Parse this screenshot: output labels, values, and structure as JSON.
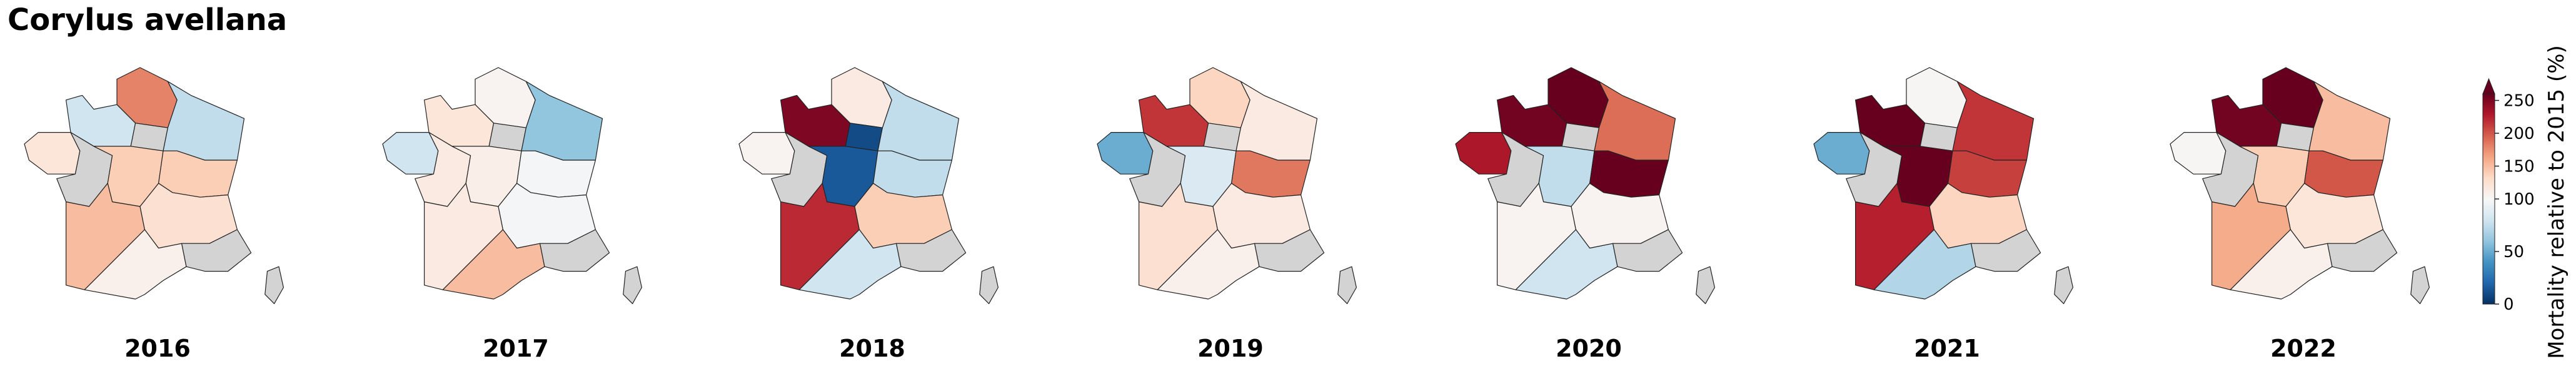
{
  "chart_data": {
    "type": "choropleth",
    "title": "Corylus avellana",
    "colorbar_label": "Mortality relative to 2015 (%)",
    "clim": [
      0,
      260
    ],
    "center": 100,
    "colorbar_ticks": [
      0,
      50,
      100,
      150,
      200,
      250
    ],
    "colormap": [
      "#053061",
      "#2166ac",
      "#4393c3",
      "#92c5de",
      "#d1e5f0",
      "#f7f7f7",
      "#fddbc7",
      "#f4a582",
      "#d6604d",
      "#b2182b",
      "#67001f"
    ],
    "missing_color": "#d3d3d3",
    "maps": [
      {
        "label": "2016",
        "values": [
          180,
          80,
          null,
          75,
          120,
          null,
          140,
          140,
          150,
          125,
          108,
          null,
          null
        ]
      },
      {
        "label": "2017",
        "values": [
          105,
          120,
          null,
          60,
          80,
          115,
          110,
          98,
          115,
          98,
          150,
          null,
          null
        ]
      },
      {
        "label": "2018",
        "values": [
          115,
          250,
          10,
          75,
          105,
          null,
          15,
          75,
          220,
          140,
          80,
          null,
          null
        ]
      },
      {
        "label": "2019",
        "values": [
          135,
          215,
          null,
          115,
          50,
          null,
          85,
          185,
          125,
          115,
          108,
          null,
          null
        ]
      },
      {
        "label": "2020",
        "values": [
          260,
          255,
          null,
          190,
          230,
          null,
          75,
          260,
          105,
          105,
          80,
          null,
          null
        ]
      },
      {
        "label": "2021",
        "values": [
          102,
          260,
          null,
          215,
          50,
          null,
          260,
          210,
          225,
          135,
          70,
          null,
          null
        ]
      },
      {
        "label": "2022",
        "values": [
          260,
          255,
          null,
          150,
          102,
          null,
          140,
          200,
          160,
          120,
          108,
          null,
          null
        ]
      }
    ]
  }
}
